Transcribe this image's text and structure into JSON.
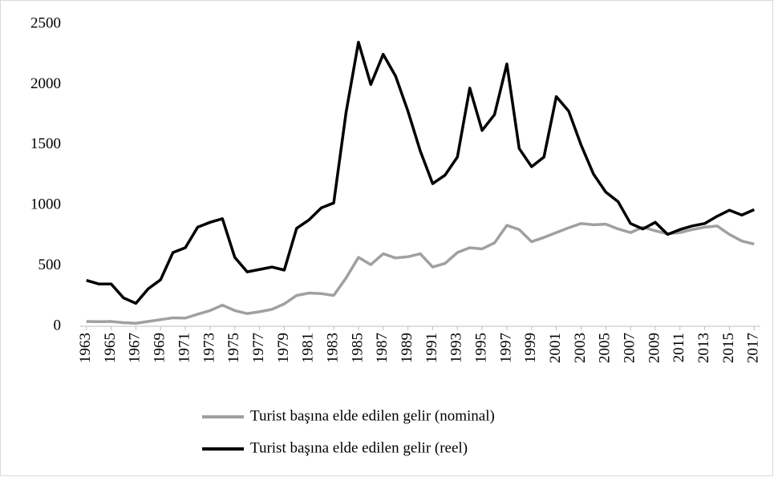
{
  "chart_data": {
    "type": "line",
    "x": [
      1963,
      1964,
      1965,
      1966,
      1967,
      1968,
      1969,
      1970,
      1971,
      1972,
      1973,
      1974,
      1975,
      1976,
      1977,
      1978,
      1979,
      1980,
      1981,
      1982,
      1983,
      1984,
      1985,
      1986,
      1987,
      1988,
      1989,
      1990,
      1991,
      1992,
      1993,
      1994,
      1995,
      1996,
      1997,
      1998,
      1999,
      2000,
      2001,
      2002,
      2003,
      2004,
      2005,
      2006,
      2007,
      2008,
      2009,
      2010,
      2011,
      2012,
      2013,
      2014,
      2015,
      2016,
      2017
    ],
    "series": [
      {
        "name": "Turist başına elde edilen gelir (nominal)",
        "color": "#a0a0a0",
        "values": [
          40,
          38,
          40,
          30,
          25,
          40,
          55,
          70,
          68,
          100,
          130,
          175,
          130,
          105,
          120,
          140,
          185,
          255,
          275,
          270,
          255,
          400,
          570,
          510,
          600,
          565,
          575,
          600,
          490,
          520,
          610,
          650,
          640,
          690,
          835,
          800,
          700,
          735,
          775,
          815,
          850,
          840,
          845,
          805,
          775,
          820,
          790,
          765,
          775,
          800,
          820,
          830,
          760,
          705,
          680
        ]
      },
      {
        "name": "Turist başına elde edilen gelir (reel)",
        "color": "#000000",
        "values": [
          380,
          350,
          350,
          235,
          190,
          310,
          385,
          610,
          650,
          820,
          860,
          890,
          570,
          450,
          470,
          490,
          465,
          810,
          880,
          980,
          1020,
          1770,
          2350,
          2000,
          2250,
          2070,
          1780,
          1450,
          1180,
          1250,
          1400,
          1970,
          1620,
          1750,
          2170,
          1470,
          1320,
          1400,
          1900,
          1780,
          1500,
          1260,
          1110,
          1030,
          850,
          805,
          860,
          760,
          800,
          830,
          850,
          910,
          960,
          920,
          965
        ]
      }
    ],
    "xlim": [
      1962.5,
      2017.5
    ],
    "xticks": [
      1963,
      1965,
      1967,
      1969,
      1971,
      1973,
      1975,
      1977,
      1979,
      1981,
      1983,
      1985,
      1987,
      1989,
      1991,
      1993,
      1995,
      1997,
      1999,
      2001,
      2003,
      2005,
      2007,
      2009,
      2011,
      2013,
      2015,
      2017
    ],
    "ylim": [
      0,
      2500
    ],
    "yticks": [
      0,
      500,
      1000,
      1500,
      2000,
      2500
    ],
    "grid": false
  }
}
